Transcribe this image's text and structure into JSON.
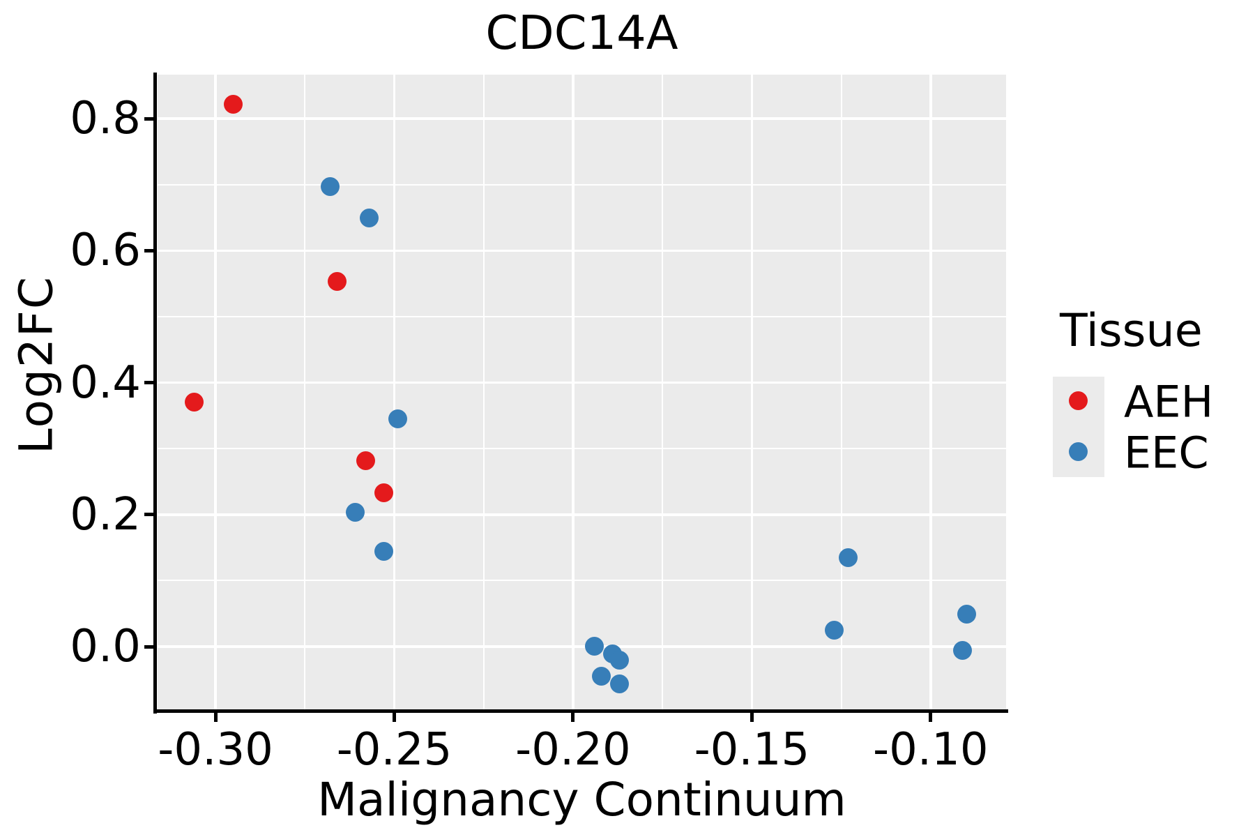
{
  "title": "CDC14A",
  "x_axis": {
    "label": "Malignancy Continuum",
    "tick_labels": [
      "-0.30",
      "-0.25",
      "-0.20",
      "-0.15",
      "-0.10"
    ]
  },
  "y_axis": {
    "label": "Log2FC",
    "tick_labels": [
      "0.8",
      "0.6",
      "0.4",
      "0.2",
      "0.0"
    ]
  },
  "legend": {
    "title": "Tissue",
    "entries": [
      {
        "label": "AEH",
        "color": "#E41A1C"
      },
      {
        "label": "EEC",
        "color": "#377EB8"
      }
    ]
  },
  "colors": {
    "panel_background": "#EBEBEB",
    "gridline": "#FFFFFF",
    "axis_line": "#000000",
    "aeh_red": "#E41A1C",
    "eec_blue": "#377EB8"
  },
  "chart_data": {
    "type": "scatter",
    "title": "CDC14A",
    "xlabel": "Malignancy Continuum",
    "ylabel": "Log2FC",
    "legend_title": "Tissue",
    "legend_position": "right",
    "grid": true,
    "xlim": [
      -0.3162,
      -0.0789
    ],
    "ylim": [
      -0.0951,
      0.8666
    ],
    "x_major_ticks": [
      -0.3,
      -0.25,
      -0.2,
      -0.15,
      -0.1
    ],
    "x_minor_ticks": [
      -0.275,
      -0.225,
      -0.175,
      -0.125
    ],
    "y_major_ticks": [
      0.8,
      0.6,
      0.4,
      0.2,
      0.0
    ],
    "y_minor_ticks": [
      0.7,
      0.5,
      0.3,
      0.1
    ],
    "series": [
      {
        "name": "AEH",
        "color": "#E41A1C",
        "points": [
          [
            -0.295,
            0.822
          ],
          [
            -0.266,
            0.553
          ],
          [
            -0.306,
            0.37
          ],
          [
            -0.258,
            0.282
          ],
          [
            -0.253,
            0.233
          ]
        ]
      },
      {
        "name": "EEC",
        "color": "#377EB8",
        "points": [
          [
            -0.268,
            0.697
          ],
          [
            -0.257,
            0.649
          ],
          [
            -0.249,
            0.345
          ],
          [
            -0.261,
            0.203
          ],
          [
            -0.253,
            0.144
          ],
          [
            -0.194,
            0.001
          ],
          [
            -0.189,
            -0.011
          ],
          [
            -0.187,
            -0.021
          ],
          [
            -0.192,
            -0.045
          ],
          [
            -0.187,
            -0.057
          ],
          [
            -0.123,
            0.135
          ],
          [
            -0.127,
            0.025
          ],
          [
            -0.09,
            0.049
          ],
          [
            -0.091,
            -0.006
          ]
        ]
      }
    ]
  }
}
